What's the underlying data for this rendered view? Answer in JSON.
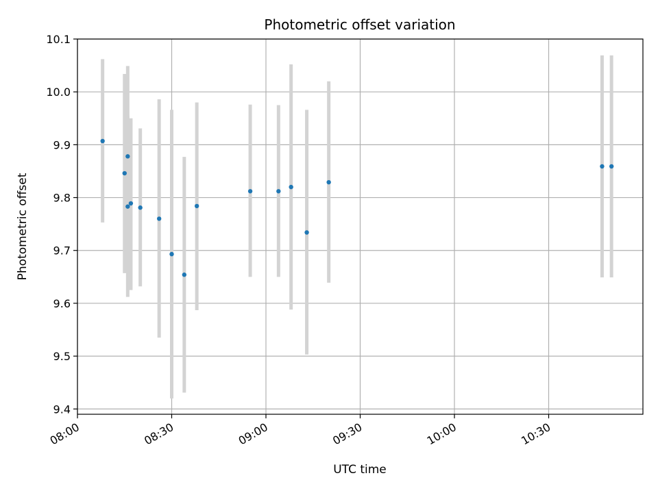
{
  "chart_data": {
    "type": "scatter",
    "title": "Photometric offset variation",
    "xlabel": "UTC time",
    "ylabel": "Photometric offset",
    "xlim": [
      "08:00",
      "11:00"
    ],
    "ylim": [
      9.39,
      10.1
    ],
    "grid": true,
    "xticks": [
      "08:00",
      "08:30",
      "09:00",
      "09:30",
      "10:00",
      "10:30"
    ],
    "yticks": [
      "9.4",
      "9.5",
      "9.6",
      "9.7",
      "9.8",
      "9.9",
      "10.0",
      "10.1"
    ],
    "colors": {
      "points": "#1f77b4",
      "errorbars": "#d3d3d3",
      "grid": "#b0b0b0"
    },
    "points": [
      {
        "time": "08:08",
        "y": 9.907,
        "ylow": 9.753,
        "yhigh": 10.062
      },
      {
        "time": "08:15",
        "y": 9.846,
        "ylow": 9.657,
        "yhigh": 10.034
      },
      {
        "time": "08:16",
        "y": 9.878,
        "ylow": 9.705,
        "yhigh": 10.049
      },
      {
        "time": "08:16",
        "y": 9.783,
        "ylow": 9.612,
        "yhigh": 9.955
      },
      {
        "time": "08:17",
        "y": 9.789,
        "ylow": 9.625,
        "yhigh": 9.95
      },
      {
        "time": "08:20",
        "y": 9.781,
        "ylow": 9.632,
        "yhigh": 9.931
      },
      {
        "time": "08:26",
        "y": 9.76,
        "ylow": 9.535,
        "yhigh": 9.986
      },
      {
        "time": "08:30",
        "y": 9.693,
        "ylow": 9.42,
        "yhigh": 9.966
      },
      {
        "time": "08:34",
        "y": 9.654,
        "ylow": 9.431,
        "yhigh": 9.877
      },
      {
        "time": "08:38",
        "y": 9.784,
        "ylow": 9.587,
        "yhigh": 9.98
      },
      {
        "time": "08:55",
        "y": 9.812,
        "ylow": 9.65,
        "yhigh": 9.976
      },
      {
        "time": "09:04",
        "y": 9.812,
        "ylow": 9.65,
        "yhigh": 9.975
      },
      {
        "time": "09:08",
        "y": 9.82,
        "ylow": 9.588,
        "yhigh": 10.052
      },
      {
        "time": "09:13",
        "y": 9.734,
        "ylow": 9.503,
        "yhigh": 9.966
      },
      {
        "time": "09:20",
        "y": 9.829,
        "ylow": 9.639,
        "yhigh": 10.02
      },
      {
        "time": "10:47",
        "y": 9.859,
        "ylow": 9.649,
        "yhigh": 10.069
      },
      {
        "time": "10:50",
        "y": 9.859,
        "ylow": 9.649,
        "yhigh": 10.069
      }
    ]
  }
}
